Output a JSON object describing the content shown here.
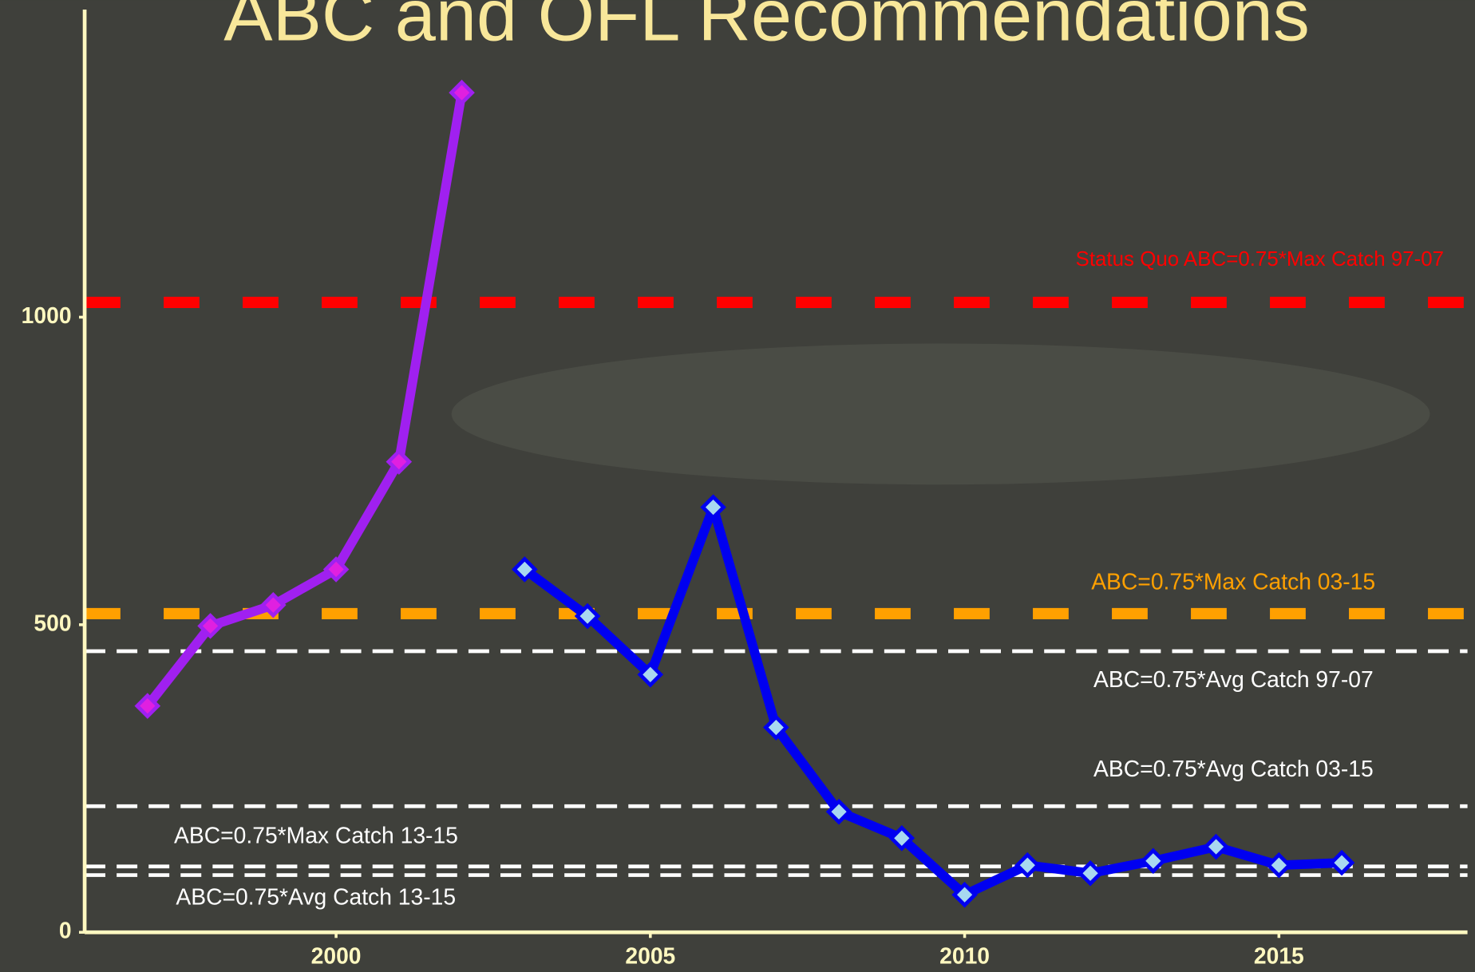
{
  "chart_data": {
    "type": "line",
    "title": "ABC and OFL Recommendations",
    "x": [
      1997,
      1998,
      1999,
      2000,
      2001,
      2002,
      2003,
      2004,
      2005,
      2006,
      2007,
      2008,
      2009,
      2010,
      2011,
      2012,
      2013,
      2014,
      2015,
      2016
    ],
    "series": [
      {
        "color": "#a020f0",
        "marker_color": "#e020e0",
        "values": [
          368,
          498,
          532,
          590,
          765,
          1365,
          null,
          null,
          null,
          null,
          null,
          null,
          null,
          null,
          null,
          null,
          null,
          null,
          null,
          null
        ]
      },
      {
        "color": "#0000f0",
        "marker_color": "#a8d8f0",
        "values": [
          null,
          null,
          null,
          null,
          null,
          null,
          590,
          514,
          419,
          691,
          333,
          196,
          153,
          61,
          109,
          96,
          116,
          139,
          109,
          113
        ]
      }
    ],
    "reference_lines": [
      {
        "value": 1024,
        "label": "Status Quo ABC=0.75*Max Catch 97-07",
        "color": "#ff0000"
      },
      {
        "value": 518,
        "label": "ABC=0.75*Max Catch 03-15",
        "color": "#ffa000"
      },
      {
        "value": 457,
        "label": "ABC=0.75*Avg Catch 97-07",
        "color": "#ffffff"
      },
      {
        "value": 205,
        "label": "ABC=0.75*Avg Catch 03-15",
        "color": "#ffffff"
      },
      {
        "value": 107,
        "label": "ABC=0.75*Max Catch 13-15",
        "color": "#ffffff"
      },
      {
        "value": 93,
        "label": "ABC=0.75*Avg Catch 13-15",
        "color": "#ffffff"
      }
    ],
    "xlim": [
      1996,
      2018
    ],
    "xticks": [
      2000,
      2005,
      2010,
      2015
    ],
    "ylim": [
      0,
      1500
    ],
    "yticks": [
      0,
      500,
      1000
    ]
  }
}
